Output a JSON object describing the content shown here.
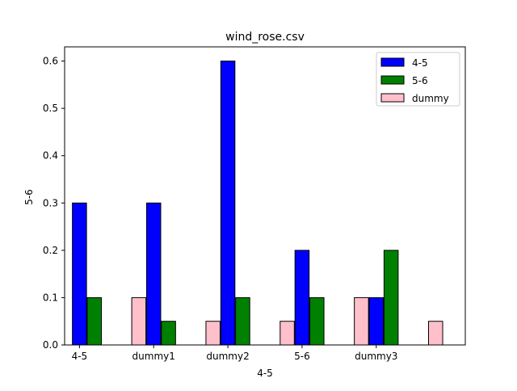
{
  "chart_data": {
    "type": "bar",
    "title": "wind_rose.csv",
    "xlabel": "4-5",
    "ylabel": "5-6",
    "xtick_labels": [
      "4-5",
      "dummy1",
      "dummy2",
      "5-6",
      "dummy3"
    ],
    "yticks": [
      0.0,
      0.1,
      0.2,
      0.3,
      0.4,
      0.5,
      0.6
    ],
    "ytick_labels": [
      "0.0",
      "0.1",
      "0.2",
      "0.3",
      "0.4",
      "0.5",
      "0.6"
    ],
    "ylim": [
      0,
      0.63
    ],
    "xlim": [
      -0.2,
      5.2
    ],
    "grid": false,
    "legend_position": "top-right",
    "series": [
      {
        "name": "4-5",
        "color": "#0000ff",
        "x": [
          0,
          1,
          2,
          3,
          4
        ],
        "values": [
          0.3,
          0.3,
          0.6,
          0.2,
          0.1
        ]
      },
      {
        "name": "5-6",
        "color": "#008000",
        "x": [
          0.2,
          1.2,
          2.2,
          3.2,
          4.2
        ],
        "values": [
          0.1,
          0.05,
          0.1,
          0.1,
          0.2
        ]
      },
      {
        "name": "dummy",
        "color": "#ffc0cb",
        "x": [
          0.8,
          1.8,
          2.8,
          3.8,
          4.8
        ],
        "values": [
          0.1,
          0.05,
          0.05,
          0.1,
          0.05
        ]
      }
    ]
  }
}
